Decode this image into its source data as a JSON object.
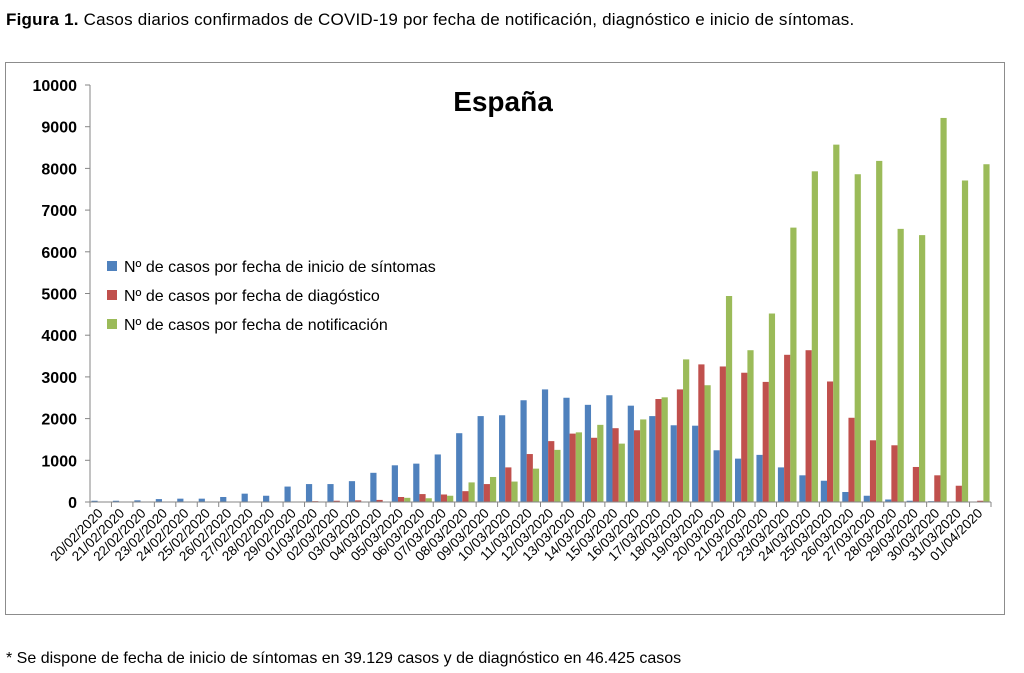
{
  "caption": {
    "label": "Figura 1.",
    "text": "Casos diarios confirmados de COVID-19 por fecha de notificación, diagnóstico e inicio de síntomas."
  },
  "footnote": "* Se dispone de fecha de inicio de síntomas en 39.129 casos y de diagnóstico en 46.425 casos",
  "colors": {
    "sintomas": "#4f81bd",
    "diagnostico": "#c0504d",
    "notificacion": "#9bbb59"
  },
  "chart_data": {
    "type": "bar",
    "title": "España",
    "ylim": [
      0,
      10000
    ],
    "yticks": [
      "0",
      "1000",
      "2000",
      "3000",
      "4000",
      "5000",
      "6000",
      "7000",
      "8000",
      "9000",
      "10000"
    ],
    "grid": false,
    "legend_position": "left-middle",
    "categories": [
      "20/02/2020",
      "21/02/2020",
      "22/02/2020",
      "23/02/2020",
      "24/02/2020",
      "25/02/2020",
      "26/02/2020",
      "27/02/2020",
      "28/02/2020",
      "29/02/2020",
      "01/03/2020",
      "02/03/2020",
      "03/03/2020",
      "04/03/2020",
      "05/03/2020",
      "06/03/2020",
      "07/03/2020",
      "08/03/2020",
      "09/03/2020",
      "10/03/2020",
      "11/03/2020",
      "12/03/2020",
      "13/03/2020",
      "14/03/2020",
      "15/03/2020",
      "16/03/2020",
      "17/03/2020",
      "18/03/2020",
      "19/03/2020",
      "20/03/2020",
      "21/03/2020",
      "22/03/2020",
      "23/03/2020",
      "24/03/2020",
      "25/03/2020",
      "26/03/2020",
      "27/03/2020",
      "28/03/2020",
      "29/03/2020",
      "30/03/2020",
      "31/03/2020",
      "01/04/2020"
    ],
    "series": [
      {
        "name": "Nº de casos por fecha de inicio de síntomas",
        "values": [
          30,
          30,
          40,
          70,
          80,
          80,
          120,
          200,
          150,
          370,
          430,
          430,
          500,
          700,
          880,
          920,
          1140,
          1650,
          2060,
          2080,
          2440,
          2700,
          2500,
          2330,
          2560,
          2310,
          2060,
          1840,
          1830,
          1240,
          1040,
          1130,
          830,
          640,
          510,
          240,
          150,
          60,
          30,
          20,
          10,
          10
        ]
      },
      {
        "name": "Nº de casos por fecha de diagóstico",
        "values": [
          0,
          0,
          0,
          0,
          0,
          0,
          10,
          10,
          10,
          10,
          20,
          30,
          40,
          50,
          120,
          190,
          180,
          260,
          430,
          830,
          1150,
          1460,
          1640,
          1540,
          1770,
          1720,
          2470,
          2700,
          3300,
          3250,
          3100,
          2880,
          3530,
          3640,
          2890,
          2020,
          1480,
          1360,
          840,
          640,
          390,
          30
        ]
      },
      {
        "name": "Nº de casos por fecha de notificación",
        "values": [
          0,
          0,
          0,
          0,
          0,
          0,
          0,
          0,
          0,
          0,
          0,
          0,
          0,
          0,
          100,
          90,
          150,
          470,
          600,
          490,
          800,
          1250,
          1670,
          1850,
          1400,
          1980,
          2510,
          3420,
          2800,
          4940,
          3640,
          4520,
          6580,
          7930,
          8570,
          7860,
          8180,
          6550,
          6400,
          9210,
          7710,
          8100
        ]
      }
    ]
  }
}
